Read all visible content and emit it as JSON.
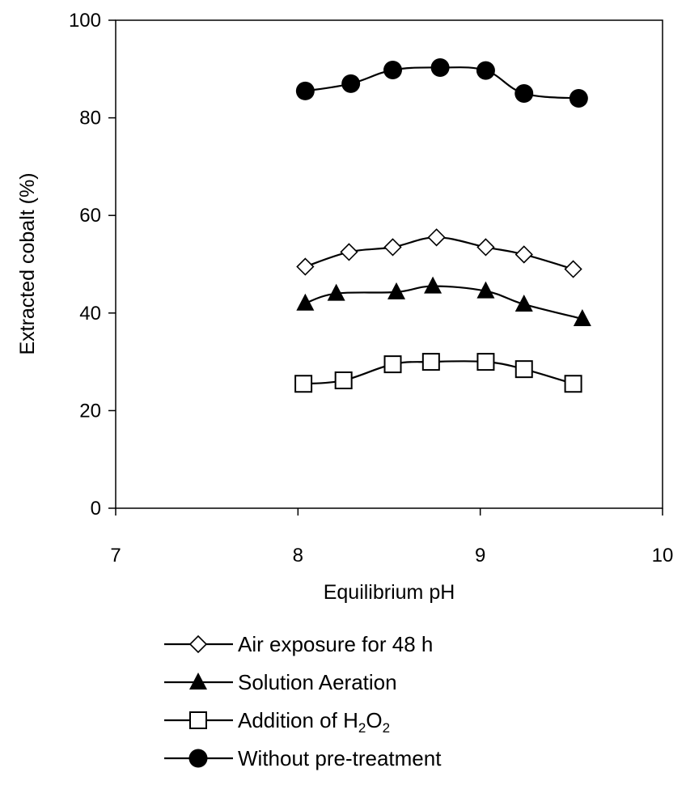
{
  "chart_data": {
    "type": "line",
    "title": "",
    "xlabel": "Equilibrium pH",
    "ylabel": "Extracted cobalt (%)",
    "xlim": [
      7,
      10
    ],
    "ylim": [
      0,
      100
    ],
    "xticks": [
      7,
      8,
      9,
      10
    ],
    "yticks": [
      0,
      20,
      40,
      60,
      80,
      100
    ],
    "grid": false,
    "legend_position": "bottom",
    "series": [
      {
        "name": "Air exposure for 48 h",
        "marker": "open-diamond",
        "x": [
          8.04,
          8.28,
          8.52,
          8.76,
          9.03,
          9.24,
          9.51
        ],
        "y": [
          49.5,
          52.5,
          53.5,
          55.5,
          53.5,
          52.0,
          49.0
        ]
      },
      {
        "name": "Solution Aeration",
        "marker": "filled-triangle",
        "x": [
          8.04,
          8.21,
          8.54,
          8.74,
          9.03,
          9.24,
          9.56
        ],
        "y": [
          42.0,
          44.0,
          44.3,
          45.5,
          44.5,
          41.8,
          38.8
        ]
      },
      {
        "name": "Addition of H2O2",
        "name_base": "Addition of H",
        "name_sub1": "2",
        "name_mid": "O",
        "name_sub2": "2",
        "marker": "open-square",
        "x": [
          8.03,
          8.25,
          8.52,
          8.73,
          9.03,
          9.24,
          9.51
        ],
        "y": [
          25.5,
          26.2,
          29.5,
          30.0,
          30.0,
          28.5,
          25.5
        ]
      },
      {
        "name": "Without pre-treatment",
        "marker": "filled-circle",
        "x": [
          8.04,
          8.29,
          8.52,
          8.78,
          9.03,
          9.24,
          9.54
        ],
        "y": [
          85.5,
          87.0,
          89.8,
          90.3,
          89.7,
          85.0,
          84.0
        ]
      }
    ]
  }
}
